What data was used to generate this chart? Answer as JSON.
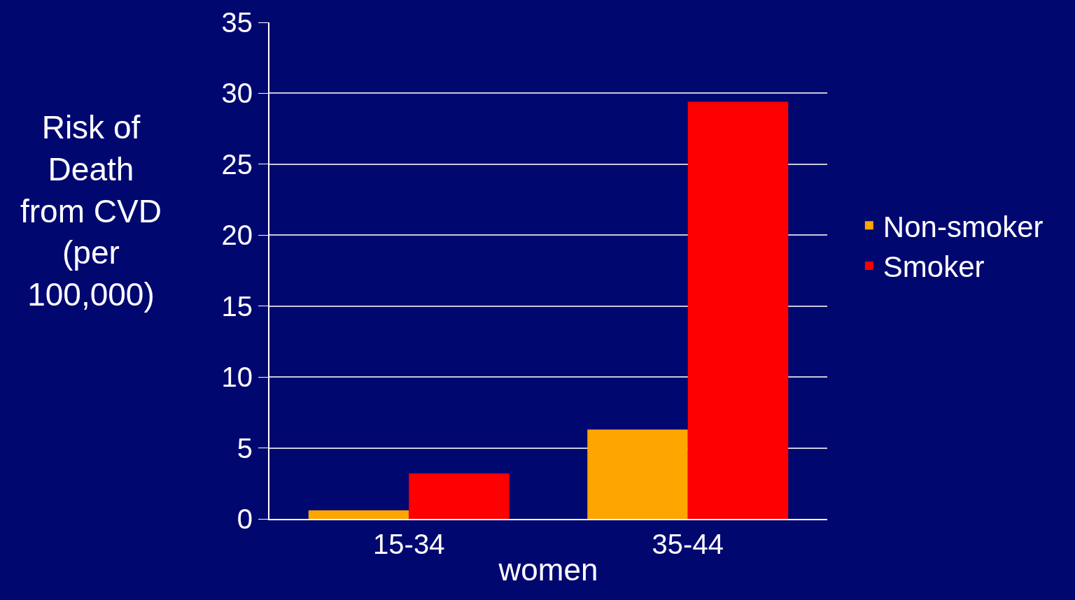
{
  "chart_data": {
    "type": "bar",
    "categories": [
      "15-34",
      "35-44"
    ],
    "xlabel": "women",
    "ylabel": "Risk of Death from CVD (per 100,000)",
    "series": [
      {
        "name": "Non-smoker",
        "color": "#ffa500",
        "values": [
          0.6,
          6.3
        ]
      },
      {
        "name": "Smoker",
        "color": "#ff0000",
        "values": [
          3.2,
          29.4
        ]
      }
    ],
    "ylim": [
      0,
      35
    ],
    "yticks": [
      0,
      5,
      10,
      15,
      20,
      25,
      30,
      35
    ],
    "grid": "y",
    "legend": "right"
  }
}
